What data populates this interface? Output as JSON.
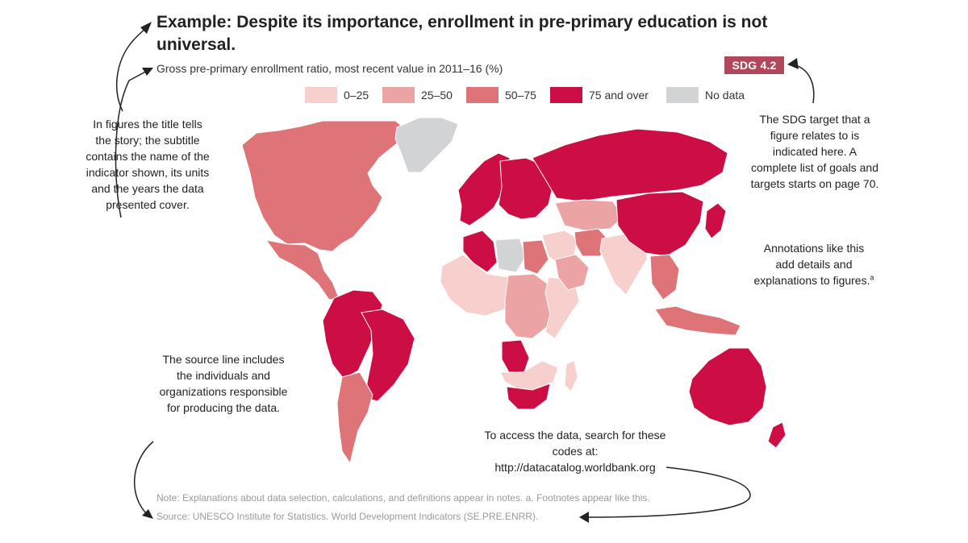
{
  "figure": {
    "title": "Example: Despite its importance, enrollment in pre-primary education is not universal.",
    "subtitle": "Gross pre-primary enrollment ratio, most recent value in 2011–16 (%)",
    "sdg_badge": "SDG 4.2"
  },
  "legend": {
    "items": [
      {
        "label": "0–25",
        "color": "#f7cfcc"
      },
      {
        "label": "25–50",
        "color": "#eba3a3"
      },
      {
        "label": "50–75",
        "color": "#de7378"
      },
      {
        "label": "75 and over",
        "color": "#cc0e45"
      },
      {
        "label": "No data",
        "color": "#d2d3d5"
      }
    ]
  },
  "annotations": {
    "title_note": "In figures the title tells the story; the subtitle contains the name of the indicator shown, its units and the years the data presented cover.",
    "sdg_note": "The SDG target that a figure relates to is indicated here. A complete list of goals and targets starts on page 70.",
    "details_note": "Annotations like this add details and explanations to figures.",
    "details_note_sup": "a",
    "source_note": "The source line includes the individuals and organizations responsible for producing the data.",
    "data_access_note": "To access the data, search for these codes at:",
    "data_access_url": "http://datacatalog.worldbank.org"
  },
  "footnotes": {
    "note": "Note: Explanations about data selection, calculations, and definitions appear in notes. a. Footnotes appear like this.",
    "source": "Source: UNESCO Institute for Statistics. World Development Indicators (SE.PRE.ENRR)."
  },
  "map": {
    "colors": {
      "c0_25": "#f7cfcc",
      "c25_50": "#eba3a3",
      "c50_75": "#de7378",
      "c75": "#cc0e45",
      "nodata": "#d2d3d5"
    },
    "regions": [
      {
        "name": "north-america",
        "class": "c50_75"
      },
      {
        "name": "greenland",
        "class": "nodata"
      },
      {
        "name": "mexico-central-america",
        "class": "c50_75"
      },
      {
        "name": "south-america-north",
        "class": "c75"
      },
      {
        "name": "brazil",
        "class": "c75"
      },
      {
        "name": "southern-cone",
        "class": "c50_75"
      },
      {
        "name": "western-europe",
        "class": "c75"
      },
      {
        "name": "eastern-europe",
        "class": "c75"
      },
      {
        "name": "russia",
        "class": "c75"
      },
      {
        "name": "north-africa-west",
        "class": "c75"
      },
      {
        "name": "sahara-nodata",
        "class": "nodata"
      },
      {
        "name": "egypt",
        "class": "c50_75"
      },
      {
        "name": "west-africa",
        "class": "c0_25"
      },
      {
        "name": "central-africa",
        "class": "c25_50"
      },
      {
        "name": "east-africa",
        "class": "c0_25"
      },
      {
        "name": "angola",
        "class": "c75"
      },
      {
        "name": "southern-africa",
        "class": "c0_25"
      },
      {
        "name": "south-africa",
        "class": "c75"
      },
      {
        "name": "middle-east",
        "class": "c0_25"
      },
      {
        "name": "arabian-peninsula",
        "class": "c25_50"
      },
      {
        "name": "central-asia",
        "class": "c25_50"
      },
      {
        "name": "iran",
        "class": "c50_75"
      },
      {
        "name": "india",
        "class": "c0_25"
      },
      {
        "name": "china",
        "class": "c75"
      },
      {
        "name": "japan-korea",
        "class": "c75"
      },
      {
        "name": "southeast-asia",
        "class": "c50_75"
      },
      {
        "name": "indonesia",
        "class": "c50_75"
      },
      {
        "name": "australia",
        "class": "c75"
      },
      {
        "name": "new-zealand",
        "class": "c75"
      },
      {
        "name": "madagascar",
        "class": "c0_25"
      }
    ]
  }
}
